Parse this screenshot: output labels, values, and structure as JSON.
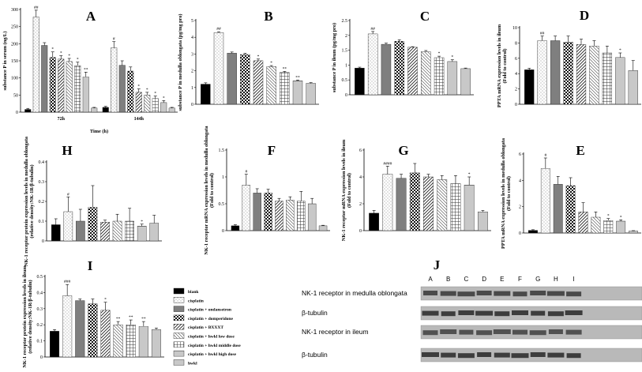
{
  "patterns": {
    "blank": {
      "fill": "#000000"
    },
    "cis": {
      "fill": "#ffffff",
      "dots": "#777777"
    },
    "ond": {
      "fill": "#7f7f7f"
    },
    "dom": {
      "fill": "#ffffff",
      "check": "#111111"
    },
    "bxxxt": {
      "fill": "#ffffff",
      "diag": "#222222",
      "dir": "/"
    },
    "low": {
      "fill": "#ffffff",
      "diag": "#444444",
      "dir": "\\"
    },
    "mid": {
      "fill": "#ffffff",
      "grid": "#333333"
    },
    "high": {
      "fill": "#ffffff",
      "hlines": "#222222"
    },
    "hwkl": {
      "fill": "#c8c8c8"
    }
  },
  "legend": {
    "items": [
      {
        "label": "blank",
        "key": "blank"
      },
      {
        "label": "cisplatin",
        "key": "cis"
      },
      {
        "label": "cisplatin + ondansetron",
        "key": "ond"
      },
      {
        "label": "cisplatin + domperidone",
        "key": "dom"
      },
      {
        "label": "cisplatin + BXXXT",
        "key": "bxxxt"
      },
      {
        "label": "cisplatin + hwkl low dose",
        "key": "low"
      },
      {
        "label": "cisplatin + hwkl middle dose",
        "key": "mid"
      },
      {
        "label": "cisplatin + hwkl high dose",
        "key": "high"
      },
      {
        "label": "hwkl",
        "key": "hwkl"
      }
    ]
  },
  "chart_data": [
    {
      "id": "A",
      "letter": "A",
      "type": "bar",
      "ylabel": "substance P in serum (ng/L)",
      "xlabel": "Time (h)",
      "ylim": [
        0,
        300
      ],
      "yticks": [
        0,
        50,
        100,
        150,
        200,
        250,
        300
      ],
      "groups": [
        "72h",
        "144h"
      ],
      "series_keys": [
        "blank",
        "cis",
        "ond",
        "dom",
        "bxxxt",
        "low",
        "mid",
        "high",
        "hwkl"
      ],
      "values": [
        [
          8,
          278,
          195,
          160,
          155,
          148,
          136,
          103,
          12
        ],
        [
          14,
          188,
          137,
          120,
          58,
          50,
          40,
          28,
          12
        ]
      ],
      "errors": [
        [
          3,
          20,
          8,
          16,
          10,
          9,
          10,
          14,
          2
        ],
        [
          3,
          18,
          13,
          12,
          10,
          8,
          7,
          6,
          2
        ]
      ],
      "marks": [
        [
          "",
          "##",
          "",
          "*",
          "*",
          "*",
          "*",
          "**",
          ""
        ],
        [
          "",
          "#",
          "",
          "",
          "*",
          "*",
          "*",
          "*",
          ""
        ]
      ]
    },
    {
      "id": "B",
      "letter": "B",
      "type": "bar",
      "ylabel": "substance P in medulla oblongata (pg/mg pro)",
      "ylim": [
        0,
        5
      ],
      "yticks": [
        0,
        1,
        2,
        3,
        4,
        5
      ],
      "series_keys": [
        "blank",
        "cis",
        "ond",
        "dom",
        "bxxxt",
        "low",
        "mid",
        "high",
        "hwkl"
      ],
      "values": [
        1.2,
        4.28,
        3.05,
        2.97,
        2.6,
        2.25,
        1.9,
        1.4,
        1.25
      ],
      "errors": [
        0.08,
        0.05,
        0.07,
        0.07,
        0.1,
        0.06,
        0.06,
        0.05,
        0.04
      ],
      "marks": [
        "",
        "##",
        "",
        "",
        "*",
        "*",
        "**",
        "**",
        ""
      ]
    },
    {
      "id": "C",
      "letter": "C",
      "type": "bar",
      "ylabel": "substance P in ileum (pg/mg pro)",
      "ylim": [
        0,
        2.5
      ],
      "yticks": [
        0,
        0.5,
        1,
        1.5,
        2,
        2.5
      ],
      "series_keys": [
        "blank",
        "cis",
        "ond",
        "dom",
        "bxxxt",
        "low",
        "mid",
        "high",
        "hwkl"
      ],
      "values": [
        0.9,
        2.05,
        1.7,
        1.8,
        1.6,
        1.45,
        1.25,
        1.12,
        0.88
      ],
      "errors": [
        0.03,
        0.08,
        0.04,
        0.05,
        0.02,
        0.04,
        0.05,
        0.06,
        0.02
      ],
      "marks": [
        "",
        "##",
        "",
        "",
        "",
        "",
        "*",
        "*",
        ""
      ]
    },
    {
      "id": "D",
      "letter": "D",
      "type": "bar",
      "ylabel": "PPTA mRNA expression levels in ileum",
      "ylabel2": "(Fold to control)",
      "ylim": [
        0,
        10
      ],
      "yticks": [
        0,
        2,
        4,
        6,
        8,
        10
      ],
      "series_keys": [
        "blank",
        "cis",
        "ond",
        "dom",
        "bxxxt",
        "low",
        "mid",
        "high",
        "hwkl"
      ],
      "values": [
        4.5,
        8.3,
        8.3,
        8.1,
        7.8,
        7.6,
        6.7,
        6.1,
        4.4
      ],
      "errors": [
        0.2,
        0.6,
        0.6,
        0.8,
        0.7,
        0.7,
        0.9,
        0.6,
        1.3
      ],
      "marks": [
        "",
        "##",
        "",
        "",
        "",
        "",
        "",
        "*",
        ""
      ]
    },
    {
      "id": "H",
      "letter": "H",
      "type": "bar",
      "ylabel": "NK-1 receptor protein expression levels in medulla oblongata",
      "ylabel2": "(relative density:NK-1R/β-tubulin)",
      "ylim": [
        0,
        0.4
      ],
      "yticks": [
        0,
        0.1,
        0.2,
        0.3,
        0.4
      ],
      "series_keys": [
        "blank",
        "cis",
        "ond",
        "dom",
        "bxxxt",
        "low",
        "mid",
        "high",
        "hwkl"
      ],
      "values": [
        0.082,
        0.148,
        0.1,
        0.17,
        0.095,
        0.1,
        0.1,
        0.075,
        0.09
      ],
      "errors": [
        0.03,
        0.075,
        0.06,
        0.11,
        0.01,
        0.035,
        0.065,
        0.01,
        0.04
      ],
      "marks": [
        "",
        "#",
        "",
        "",
        "",
        "",
        "",
        "*",
        ""
      ]
    },
    {
      "id": "F",
      "letter": "F",
      "type": "bar",
      "ylabel": "NK-1 receptor mRNA expression levels in medulla oblongata",
      "ylabel2": "(Fold to control)",
      "ylim": [
        0,
        1.5
      ],
      "yticks": [
        0,
        0.5,
        1,
        1.5
      ],
      "series_keys": [
        "blank",
        "cis",
        "ond",
        "dom",
        "bxxxt",
        "low",
        "mid",
        "high",
        "hwkl"
      ],
      "values": [
        0.09,
        0.85,
        0.7,
        0.7,
        0.55,
        0.57,
        0.55,
        0.5,
        0.09
      ],
      "errors": [
        0.02,
        0.2,
        0.08,
        0.07,
        0.05,
        0.06,
        0.18,
        0.1,
        0.01
      ],
      "marks": [
        "",
        "#",
        "",
        "",
        "",
        "",
        "",
        "",
        ""
      ]
    },
    {
      "id": "G",
      "letter": "G",
      "type": "bar",
      "ylabel": "NK-1 receptor mRNA expression levels in ileum",
      "ylabel2": "(Fold to control)",
      "ylim": [
        0,
        6
      ],
      "yticks": [
        0,
        2,
        4,
        6
      ],
      "series_keys": [
        "blank",
        "cis",
        "ond",
        "dom",
        "bxxxt",
        "low",
        "mid",
        "high",
        "hwkl"
      ],
      "values": [
        1.3,
        4.2,
        3.9,
        4.3,
        4.0,
        3.8,
        3.5,
        3.4,
        1.4
      ],
      "errors": [
        0.2,
        0.6,
        0.3,
        0.7,
        0.2,
        0.3,
        0.6,
        0.6,
        0.1
      ],
      "marks": [
        "",
        "####",
        "",
        "",
        "",
        "",
        "",
        "*",
        ""
      ]
    },
    {
      "id": "E",
      "letter": "E",
      "type": "bar",
      "ylabel": "PPTA mRNA expression levels in medulla oblongata",
      "ylabel2": "(Fold to control)",
      "ylim": [
        0,
        6
      ],
      "yticks": [
        0,
        2,
        4,
        6
      ],
      "series_keys": [
        "blank",
        "cis",
        "ond",
        "dom",
        "bxxxt",
        "low",
        "mid",
        "high",
        "hwkl"
      ],
      "values": [
        0.2,
        4.9,
        3.7,
        3.6,
        1.6,
        1.2,
        0.95,
        0.9,
        0.15
      ],
      "errors": [
        0.05,
        0.8,
        0.6,
        0.6,
        0.7,
        0.4,
        0.15,
        0.1,
        0.03
      ],
      "marks": [
        "",
        "#",
        "",
        "",
        "",
        "",
        "*",
        "*",
        ""
      ]
    },
    {
      "id": "I",
      "letter": "I",
      "type": "bar",
      "ylabel": "NK-1 receptor protein expression levels in ileum",
      "ylabel2": "(relative density:NK-1R/β-tubulin)",
      "ylim": [
        0,
        0.5
      ],
      "yticks": [
        0,
        0.1,
        0.2,
        0.3,
        0.4,
        0.5
      ],
      "series_keys": [
        "blank",
        "cis",
        "ond",
        "dom",
        "bxxxt",
        "low",
        "mid",
        "high",
        "hwkl"
      ],
      "values": [
        0.16,
        0.38,
        0.35,
        0.33,
        0.29,
        0.2,
        0.2,
        0.19,
        0.17
      ],
      "errors": [
        0.01,
        0.07,
        0.01,
        0.03,
        0.05,
        0.02,
        0.03,
        0.03,
        0.01
      ],
      "marks": [
        "",
        "###",
        "",
        "",
        "*",
        "**",
        "**",
        "**",
        ""
      ]
    }
  ],
  "blot": {
    "letter": "J",
    "lanes": [
      "A",
      "B",
      "C",
      "D",
      "E",
      "F",
      "G",
      "H",
      "I"
    ],
    "rows": [
      {
        "label": "NK-1 receptor in medulla oblongata",
        "tone": "#2a2a2a"
      },
      {
        "label": "β-tubulin",
        "tone": "#1a1a1a"
      },
      {
        "label": "NK-1 receptor in ileum",
        "tone": "#333333"
      },
      {
        "label": "β-tubulin",
        "tone": "#1a1a1a"
      }
    ]
  }
}
